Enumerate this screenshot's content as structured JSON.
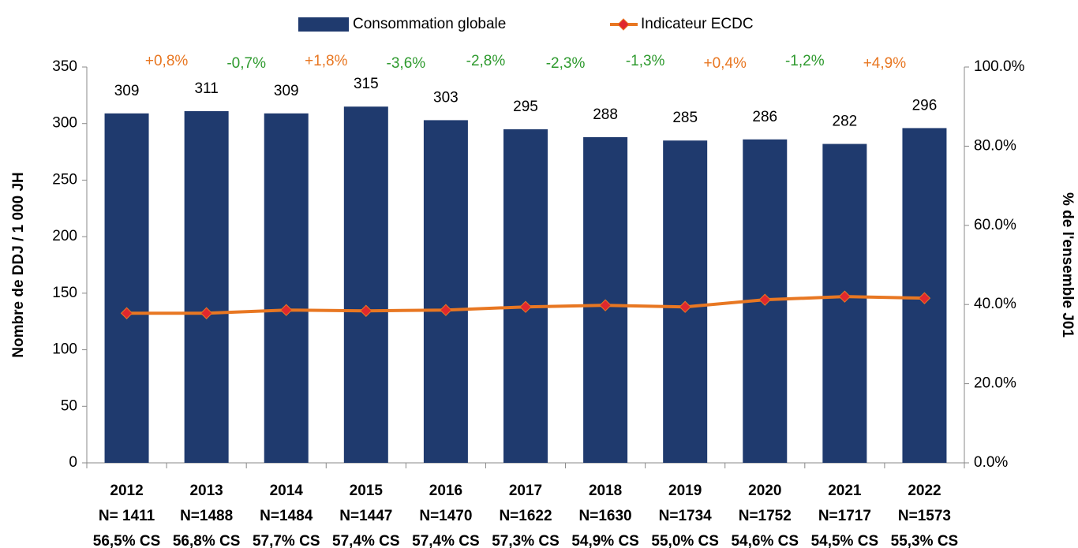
{
  "chart_data": {
    "type": "bar",
    "categories": [
      "2012",
      "2013",
      "2014",
      "2015",
      "2016",
      "2017",
      "2018",
      "2019",
      "2020",
      "2021",
      "2022"
    ],
    "n_labels": [
      "N= 1411",
      "N=1488",
      "N=1484",
      "N=1447",
      "N=1470",
      "N=1622",
      "N=1630",
      "N=1734",
      "N=1752",
      "N=1717",
      "N=1573"
    ],
    "cs_labels": [
      "56,5% CS",
      "56,8% CS",
      "57,7% CS",
      "57,4% CS",
      "57,4% CS",
      "57,3% CS",
      "54,9% CS",
      "55,0% CS",
      "54,6% CS",
      "54,5% CS",
      "55,3% CS"
    ],
    "ylabel": "Nombre de DDJ / 1 000 JH",
    "y2label": "% de l'ensemble J01",
    "ylim": [
      0,
      350
    ],
    "yticks": [
      0,
      50,
      100,
      150,
      200,
      250,
      300,
      350
    ],
    "y2lim": [
      0,
      100
    ],
    "y2ticks": [
      {
        "value": 0,
        "label": "0.0%"
      },
      {
        "value": 20,
        "label": "20.0%"
      },
      {
        "value": 40,
        "label": "40.0%"
      },
      {
        "value": 60,
        "label": "60.0%"
      },
      {
        "value": 80,
        "label": "80.0%"
      },
      {
        "value": 100,
        "label": "100.0%"
      }
    ],
    "grid": false,
    "series": [
      {
        "name": "Consommation globale",
        "type": "bar",
        "color": "#1f3a6e",
        "values": [
          309,
          311,
          309,
          315,
          303,
          295,
          288,
          285,
          286,
          282,
          296
        ]
      },
      {
        "name": "Indicateur ECDC",
        "type": "line",
        "axis": "y2",
        "color": "#e87722",
        "marker_color": "#e0282e",
        "values": [
          37.8,
          37.8,
          38.6,
          38.4,
          38.6,
          39.4,
          39.8,
          39.4,
          41.2,
          42.0,
          41.6
        ]
      }
    ],
    "annotations": [
      {
        "text": "+0,8%",
        "color": "#e87722"
      },
      {
        "text": "-0,7%",
        "color": "#2e9a2e"
      },
      {
        "text": "+1,8%",
        "color": "#e87722"
      },
      {
        "text": "-3,6%",
        "color": "#2e9a2e"
      },
      {
        "text": "-2,8%",
        "color": "#2e9a2e"
      },
      {
        "text": "-2,3%",
        "color": "#2e9a2e"
      },
      {
        "text": "-1,3%",
        "color": "#2e9a2e"
      },
      {
        "text": "+0,4%",
        "color": "#e87722"
      },
      {
        "text": "-1,2%",
        "color": "#2e9a2e"
      },
      {
        "text": "+4,9%",
        "color": "#e87722"
      }
    ]
  }
}
